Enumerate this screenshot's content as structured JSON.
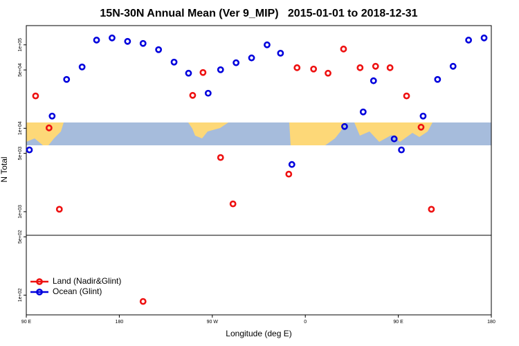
{
  "chart_data": {
    "type": "scatter",
    "title": "15N-30N Annual Mean (Ver 9_MIP)   2015-01-01 to 2018-12-31",
    "x_label": "Longitude (deg E)",
    "y_label": "N Total",
    "yscale": "log",
    "legend_position": "lower left",
    "xlim": [
      90,
      540
    ],
    "xticks": [
      {
        "value": 90,
        "label": "90 E"
      },
      {
        "value": 180,
        "label": "180"
      },
      {
        "value": 270,
        "label": "90 W"
      },
      {
        "value": 360,
        "label": "0"
      },
      {
        "value": 450,
        "label": "90 E"
      },
      {
        "value": 540,
        "label": "180"
      }
    ],
    "ylim": [
      58,
      170000
    ],
    "yticks": [
      {
        "value": 100,
        "label": "1e+02"
      },
      {
        "value": 500,
        "label": "5e+02"
      },
      {
        "value": 1000,
        "label": "1e+03"
      },
      {
        "value": 5000,
        "label": "5e+03"
      },
      {
        "value": 10000,
        "label": "1e+04"
      },
      {
        "value": 50000,
        "label": "5e+04"
      },
      {
        "value": 100000,
        "label": "1e+05"
      }
    ],
    "series": [
      {
        "name": "Land (Nadir&Glint)",
        "color": "#ee1111",
        "x": [
          99,
          112,
          122,
          203,
          251,
          261,
          278,
          290,
          344,
          352,
          368,
          382,
          397,
          413,
          428,
          442,
          458,
          472,
          482
        ],
        "values": [
          24400,
          10100,
          1070,
          84,
          24800,
          46600,
          4460,
          1240,
          2820,
          53200,
          51300,
          45700,
          89100,
          53200,
          55300,
          53200,
          24400,
          10300,
          1070
        ]
      },
      {
        "name": "Ocean (Glint)",
        "color": "#0000dd",
        "x": [
          93,
          115,
          129,
          144,
          158,
          173,
          188,
          203,
          218,
          233,
          247,
          266,
          278,
          293,
          308,
          323,
          336,
          347,
          398,
          416,
          426,
          446,
          453,
          474,
          488,
          503,
          518,
          533
        ],
        "values": [
          5500,
          14000,
          38500,
          54300,
          114000,
          121000,
          110000,
          104000,
          87500,
          62100,
          45700,
          26300,
          50300,
          61000,
          69700,
          100000,
          79400,
          3680,
          10500,
          15700,
          37100,
          7460,
          5500,
          14000,
          38500,
          55300,
          114000,
          121000
        ]
      }
    ]
  }
}
